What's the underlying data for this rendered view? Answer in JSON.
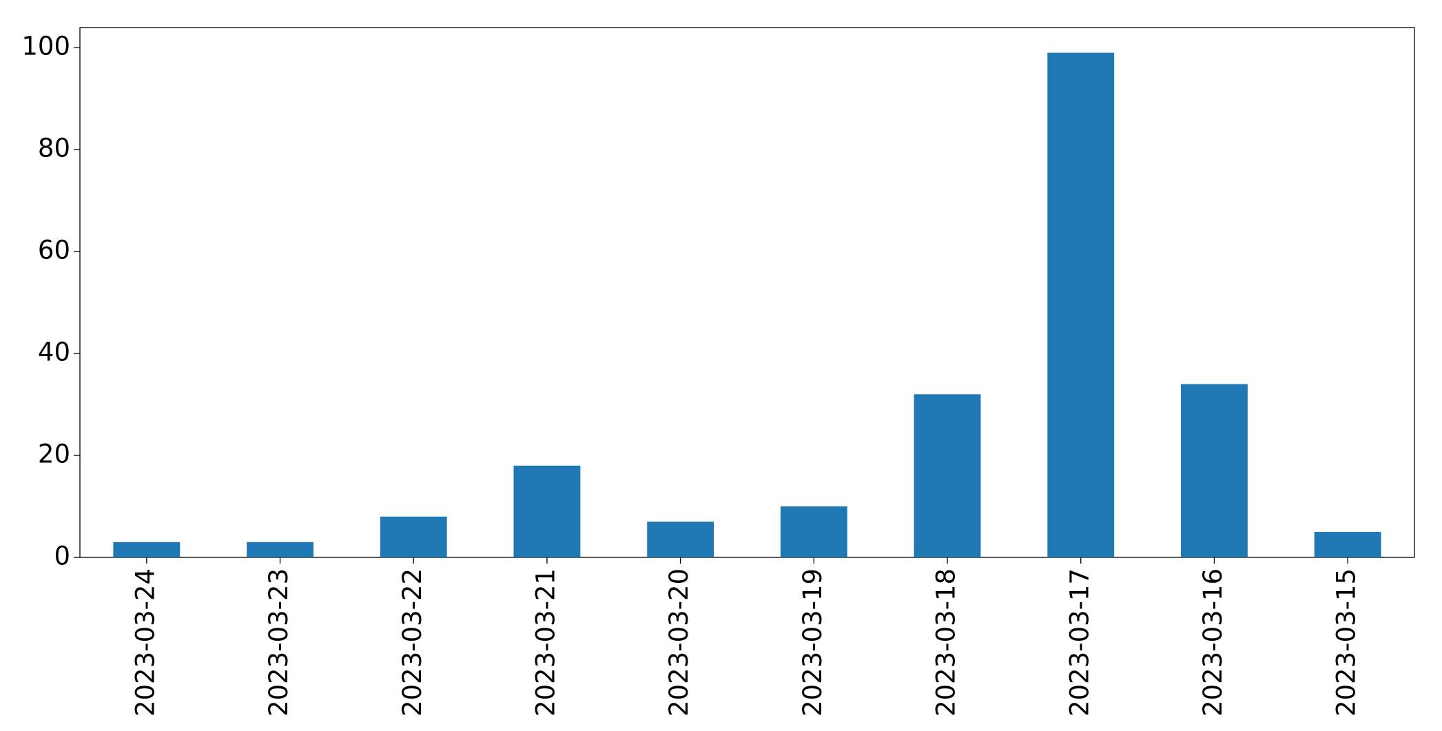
{
  "chart_data": {
    "type": "bar",
    "categories": [
      "2023-03-24",
      "2023-03-23",
      "2023-03-22",
      "2023-03-21",
      "2023-03-20",
      "2023-03-19",
      "2023-03-18",
      "2023-03-17",
      "2023-03-16",
      "2023-03-15"
    ],
    "values": [
      3,
      3,
      8,
      18,
      7,
      10,
      32,
      99,
      34,
      5
    ],
    "color": "#1f77b4",
    "ylim": [
      0,
      103.95
    ],
    "yticks": [
      0,
      20,
      40,
      60,
      80,
      100
    ],
    "grid": false
  }
}
